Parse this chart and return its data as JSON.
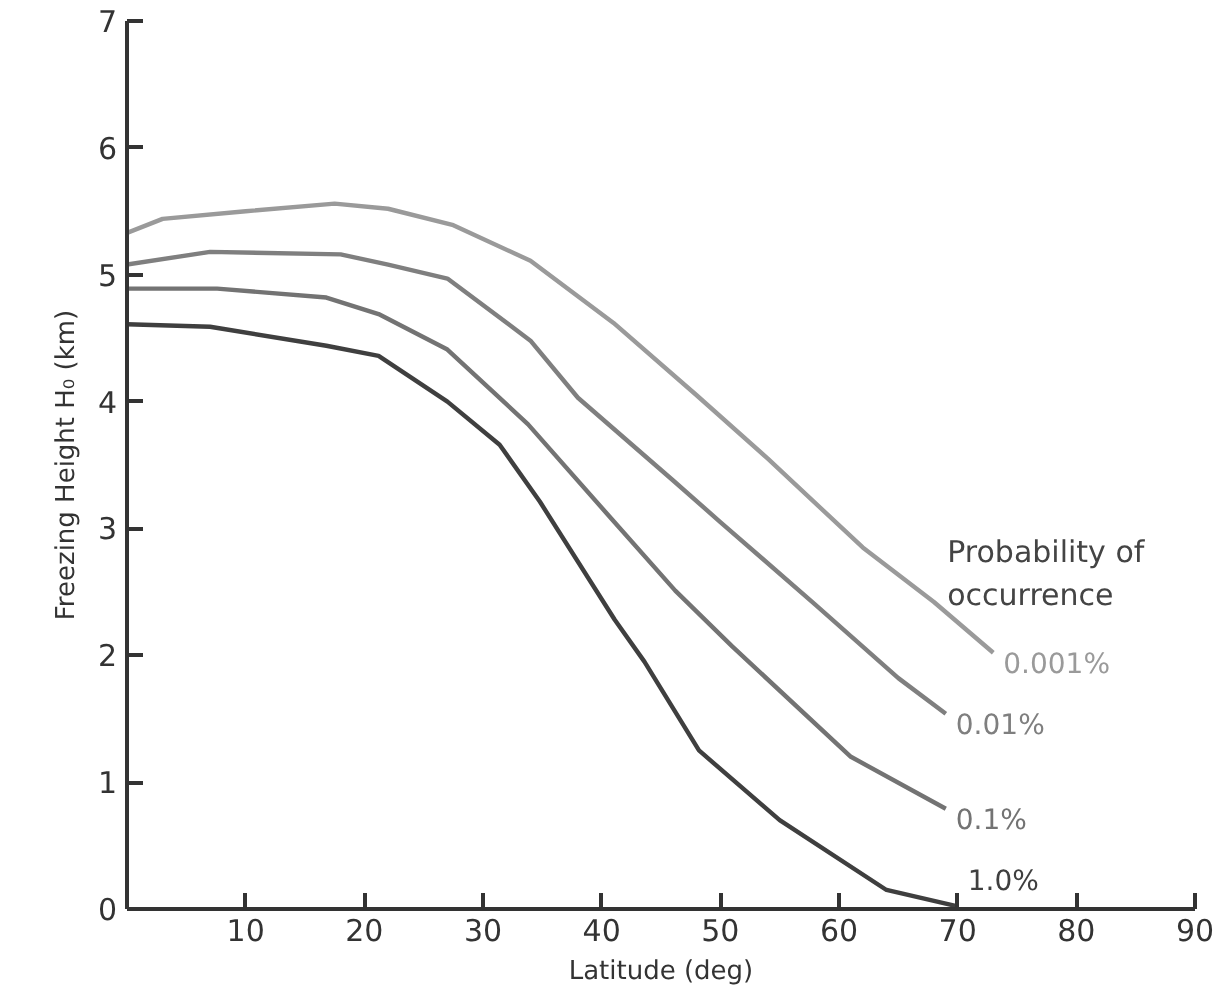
{
  "chart_data": {
    "type": "line",
    "xlabel": "Latitude (deg)",
    "ylabel": "Freezing Height H₀ (km)",
    "legend_title": "Probability of\noccurrence",
    "xlim": [
      0,
      90
    ],
    "ylim": [
      0,
      7
    ],
    "xticks": [
      {
        "value": 0,
        "label": null
      },
      10,
      20,
      30,
      40,
      50,
      60,
      70,
      80,
      90
    ],
    "yticks": [
      0,
      1,
      2,
      3,
      4,
      5,
      6,
      7
    ],
    "grid": false,
    "legend": false,
    "marker": "none",
    "line_style": "solid",
    "series": [
      {
        "name": "0.001%",
        "color": "#9a9a9a",
        "x": [
          0,
          3,
          10,
          17.5,
          22,
          27.5,
          34,
          41,
          48,
          54,
          62,
          68,
          73
        ],
        "values": [
          5.33,
          5.44,
          5.5,
          5.56,
          5.52,
          5.39,
          5.11,
          4.62,
          4.05,
          3.55,
          2.85,
          2.42,
          2.02
        ]
      },
      {
        "name": "0.01%",
        "color": "#7f7f7f",
        "x": [
          0,
          7,
          18,
          22,
          27,
          34,
          38,
          46,
          50,
          58,
          65,
          69
        ],
        "values": [
          5.08,
          5.18,
          5.16,
          5.08,
          4.97,
          4.48,
          4.03,
          3.38,
          3.05,
          2.4,
          1.82,
          1.54
        ]
      },
      {
        "name": "0.1%",
        "color": "#737373",
        "x": [
          0,
          7.6,
          16.8,
          21.2,
          27,
          33.8,
          40.6,
          46.2,
          51,
          61,
          69
        ],
        "values": [
          4.89,
          4.89,
          4.82,
          4.69,
          4.41,
          3.82,
          3.1,
          2.51,
          2.07,
          1.2,
          0.79
        ]
      },
      {
        "name": "1.0%",
        "color": "#3f3f3f",
        "x": [
          0,
          7,
          16.8,
          21.2,
          27,
          31.4,
          34.8,
          41.1,
          43.6,
          48.2,
          55,
          64,
          70
        ],
        "values": [
          4.61,
          4.59,
          4.44,
          4.36,
          4.0,
          3.66,
          3.21,
          2.28,
          1.95,
          1.25,
          0.7,
          0.15,
          0.02
        ]
      }
    ]
  }
}
